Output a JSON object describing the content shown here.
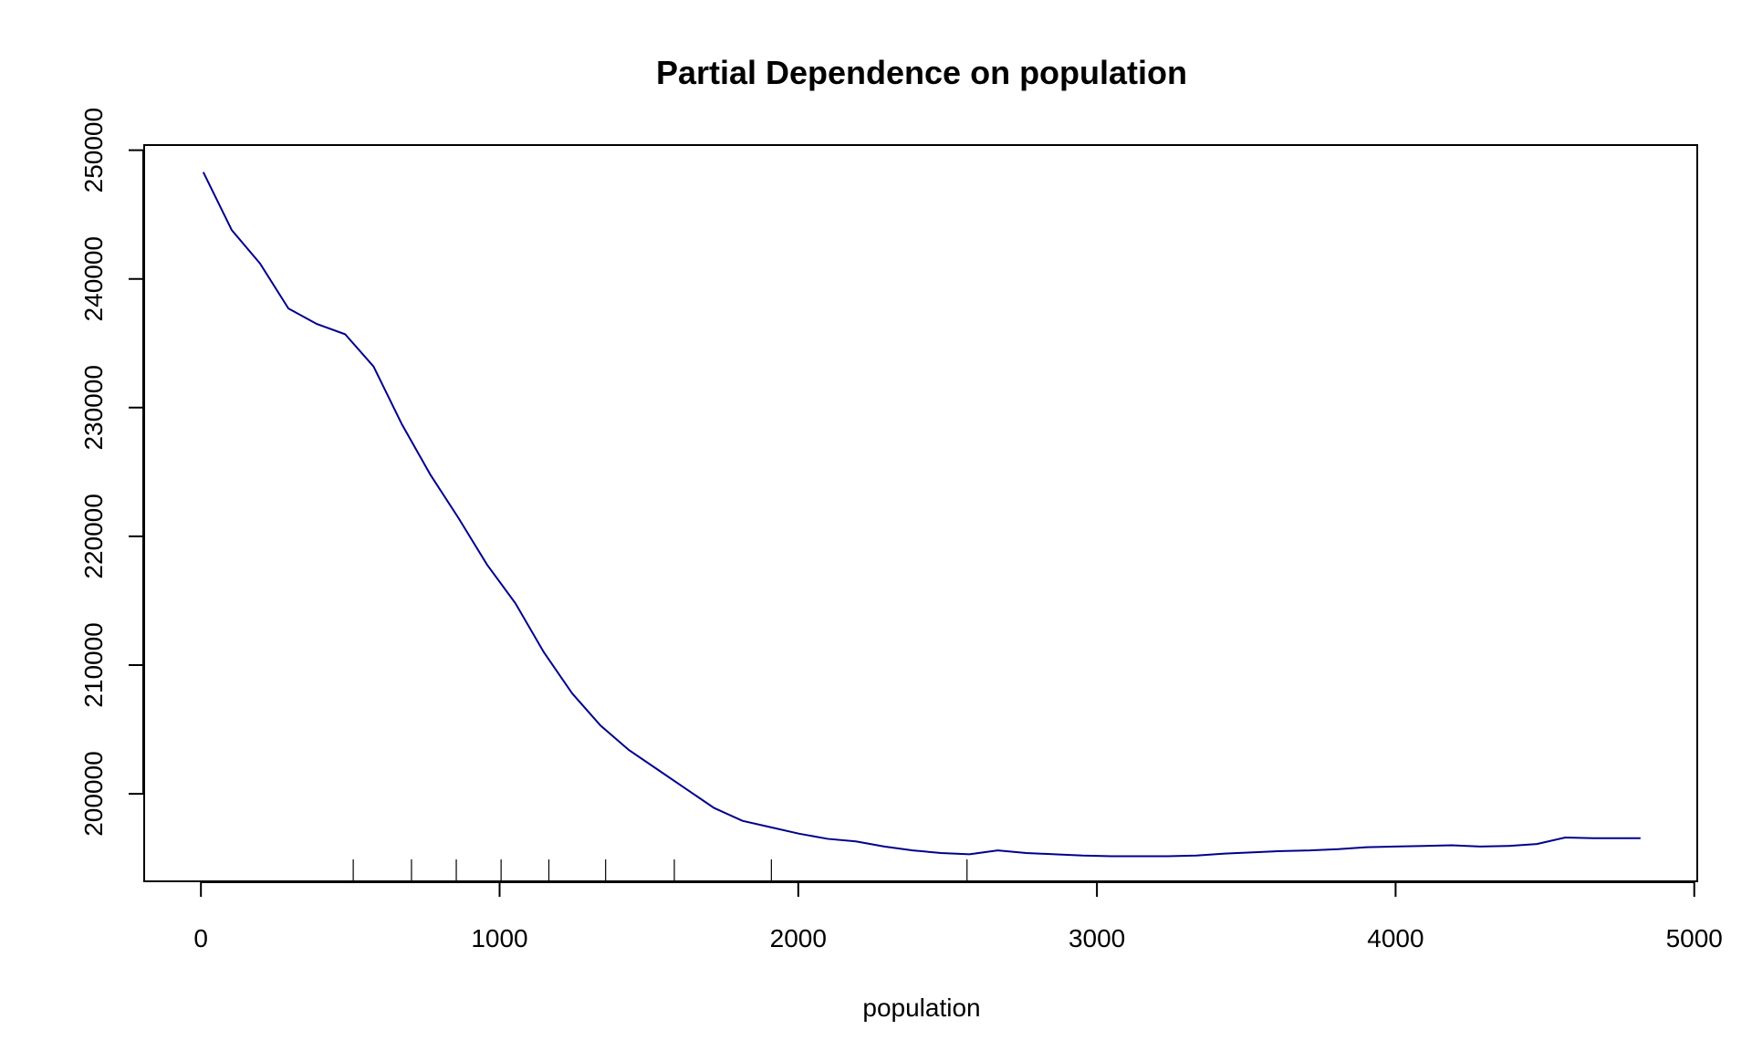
{
  "chart_data": {
    "type": "line",
    "title": "Partial Dependence on population",
    "xlabel": "population",
    "ylabel": "",
    "xlim": [
      -190,
      5010
    ],
    "ylim": [
      193200,
      250400
    ],
    "x_ticks": [
      0,
      1000,
      2000,
      3000,
      4000,
      5000
    ],
    "y_ticks": [
      200000,
      210000,
      220000,
      230000,
      240000,
      250000
    ],
    "x_tick_labels": [
      "0",
      "1000",
      "2000",
      "3000",
      "4000",
      "5000"
    ],
    "y_tick_labels": [
      "200000",
      "210000",
      "220000",
      "230000",
      "240000",
      "250000"
    ],
    "line_color": "#00008B",
    "rug": [
      510,
      705,
      855,
      1005,
      1165,
      1355,
      1585,
      1910,
      2565
    ],
    "series": [
      {
        "x": [
          8,
          103,
          198,
          293,
          388,
          483,
          578,
          673,
          768,
          863,
          958,
          1053,
          1148,
          1243,
          1338,
          1433,
          1528,
          1623,
          1718,
          1813,
          1908,
          2003,
          2098,
          2193,
          2288,
          2383,
          2478,
          2573,
          2668,
          2763,
          2858,
          2953,
          3048,
          3143,
          3238,
          3333,
          3428,
          3523,
          3618,
          3713,
          3808,
          3903,
          3998,
          4093,
          4188,
          4283,
          4378,
          4473,
          4568,
          4663,
          4820
        ],
        "values": [
          248300,
          243800,
          241200,
          237700,
          236500,
          235700,
          233200,
          228700,
          224800,
          221400,
          217800,
          214800,
          211000,
          207800,
          205300,
          203400,
          201900,
          200400,
          198900,
          197900,
          197400,
          196900,
          196500,
          196300,
          195900,
          195600,
          195400,
          195300,
          195600,
          195400,
          195300,
          195200,
          195150,
          195150,
          195150,
          195200,
          195350,
          195450,
          195550,
          195600,
          195700,
          195850,
          195900,
          195950,
          196000,
          195900,
          195950,
          196100,
          196600,
          196550,
          196550
        ]
      }
    ]
  }
}
